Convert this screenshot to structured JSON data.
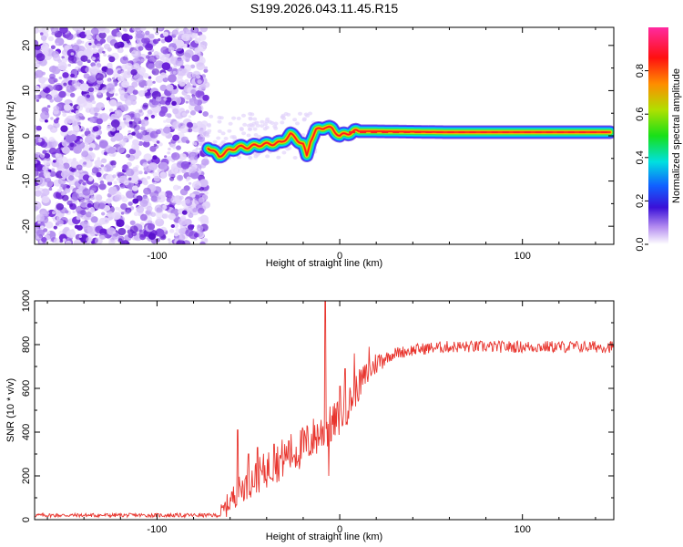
{
  "title": "S199.2026.043.11.45.R15",
  "colors": {
    "snr_line": "#e8352e",
    "noise_purple": "#7a2fe0",
    "axis": "#000000"
  },
  "chart_data": [
    {
      "type": "heatmap",
      "xlabel": "Height of straight line (km)",
      "ylabel": "Frequency (Hz)",
      "xlim": [
        -167,
        150
      ],
      "ylim": [
        -24,
        24
      ],
      "xticks": [
        -100,
        0,
        100
      ],
      "yticks": [
        -20,
        -10,
        0,
        10,
        20
      ],
      "xtick_labels": [
        "-100",
        "0",
        "100"
      ],
      "ytick_labels": [
        "-20",
        "-10",
        "0",
        "10",
        "20"
      ],
      "noise_region_x": [
        -167,
        -73
      ],
      "ridge": {
        "description": "frequency track of straight-line echo",
        "x": [
          -72,
          -66,
          -62,
          -56,
          -50,
          -44,
          -38,
          -32,
          -27,
          -24,
          -20,
          -18,
          -16,
          -13,
          -8,
          -4,
          0,
          4,
          8,
          20,
          60,
          100,
          148
        ],
        "y": [
          -2.5,
          -4.5,
          -3.5,
          -2.5,
          -2.5,
          -2.0,
          -1.8,
          -1.5,
          0.3,
          -0.5,
          -2.0,
          -4.5,
          -1.0,
          1.2,
          2.0,
          1.5,
          0.0,
          0.5,
          1.0,
          1.0,
          0.8,
          0.8,
          0.8
        ],
        "amp": [
          0.4,
          0.4,
          0.5,
          0.45,
          0.6,
          0.55,
          0.6,
          0.6,
          0.75,
          0.6,
          0.5,
          0.3,
          0.45,
          0.55,
          0.75,
          0.6,
          0.8,
          0.85,
          0.9,
          0.9,
          0.9,
          0.9,
          0.9
        ]
      },
      "colorbar": {
        "label": "Normalized spectral amplitude",
        "range": [
          0,
          1
        ],
        "ticks": [
          0.0,
          0.2,
          0.4,
          0.6,
          0.8
        ],
        "tick_labels": [
          "0.0",
          "0.2",
          "0.4",
          "0.6",
          "0.8"
        ]
      }
    },
    {
      "type": "line",
      "xlabel": "Height of straight line (km)",
      "ylabel": "SNR (10 * v/v)",
      "xlim": [
        -167,
        150
      ],
      "ylim": [
        0,
        1000
      ],
      "xticks": [
        -100,
        0,
        100
      ],
      "yticks": [
        0,
        200,
        400,
        600,
        800,
        1000
      ],
      "xtick_labels": [
        "-100",
        "0",
        "100"
      ],
      "ytick_labels": [
        "0",
        "200",
        "400",
        "600",
        "800",
        "1000"
      ],
      "series": [
        {
          "name": "SNR",
          "baseline_x": [
            -167,
            -65,
            -60,
            -55,
            -50,
            -45,
            -40,
            -35,
            -30,
            -25,
            -20,
            -15,
            -10,
            -5,
            0,
            5,
            10,
            15,
            20,
            25,
            30,
            40,
            50,
            60,
            80,
            100,
            120,
            150
          ],
          "baseline_y": [
            20,
            20,
            80,
            130,
            160,
            190,
            220,
            250,
            275,
            300,
            320,
            360,
            390,
            420,
            460,
            520,
            600,
            660,
            710,
            740,
            760,
            775,
            785,
            790,
            790,
            790,
            790,
            790
          ],
          "spikes": [
            {
              "x": -56,
              "y": 410
            },
            {
              "x": -50,
              "y": 300
            },
            {
              "x": -45,
              "y": 330
            },
            {
              "x": -36,
              "y": 345
            },
            {
              "x": -28,
              "y": 360
            },
            {
              "x": -20,
              "y": 410
            },
            {
              "x": -8,
              "y": 1000
            },
            {
              "x": -6,
              "y": 200
            },
            {
              "x": 0,
              "y": 610
            },
            {
              "x": 3,
              "y": 690
            },
            {
              "x": 8,
              "y": 760
            },
            {
              "x": 16,
              "y": 790
            }
          ]
        }
      ]
    }
  ]
}
